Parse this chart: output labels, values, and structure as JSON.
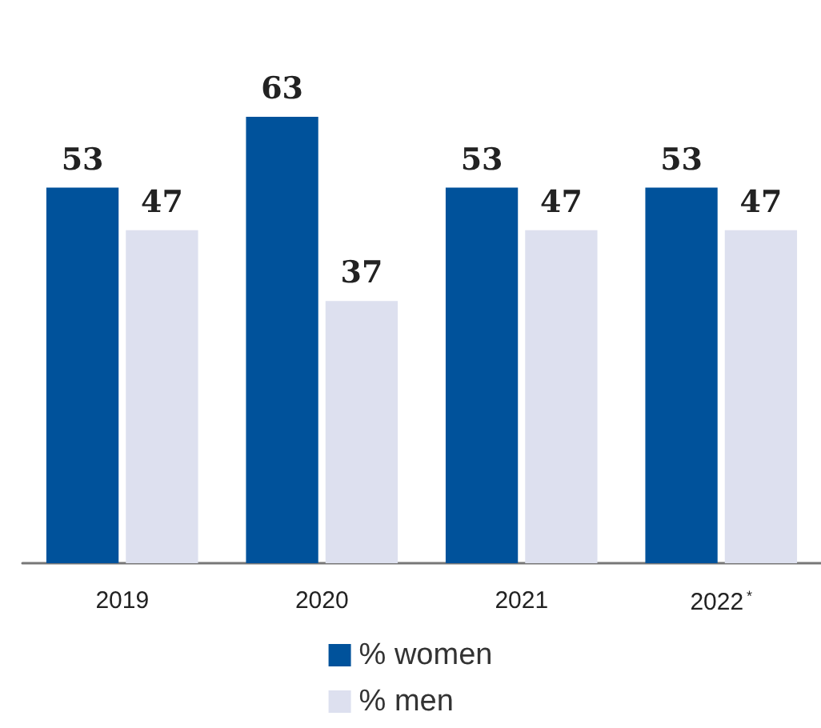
{
  "chart_data": {
    "type": "bar",
    "categories": [
      "2019",
      "2020",
      "2021",
      "2022$^{*}$"
    ],
    "series": [
      {
        "name": "% women",
        "color": "#00529b",
        "values": [
          53,
          63,
          53,
          53
        ]
      },
      {
        "name": "% men",
        "color": "#dde0ef",
        "values": [
          47,
          37,
          47,
          47
        ]
      }
    ],
    "data_labels": true,
    "legend": "bottom"
  }
}
